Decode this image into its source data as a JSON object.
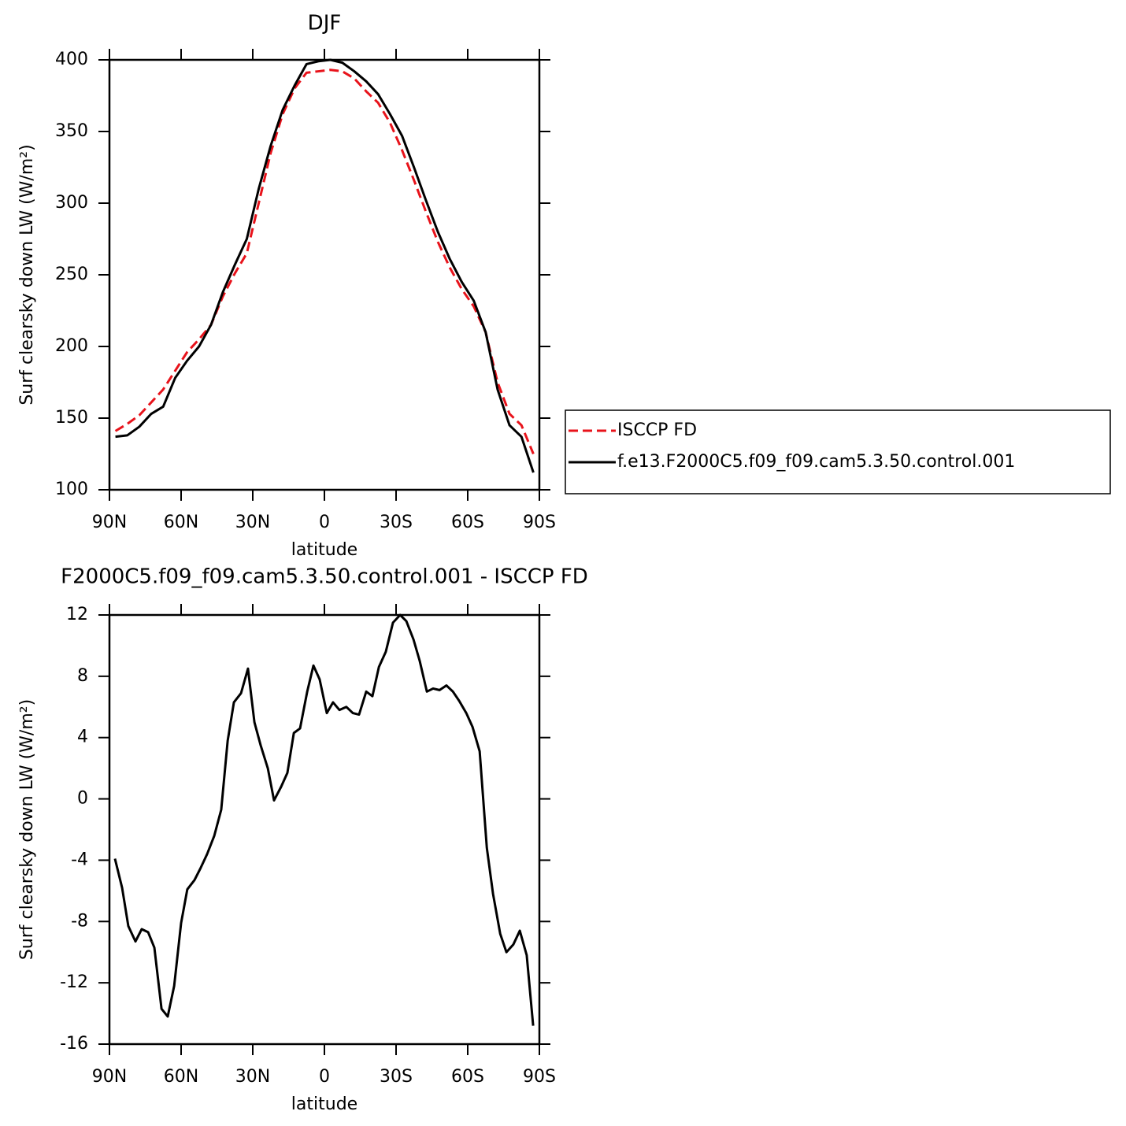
{
  "chart_data": [
    {
      "type": "line",
      "title": "DJF",
      "x_label": "latitude",
      "y_label": "Surf clearsky down LW (W/m²)",
      "xlim": [
        90,
        -90
      ],
      "xticks": [
        {
          "value": 90,
          "label": "90N"
        },
        {
          "value": 60,
          "label": "60N"
        },
        {
          "value": 30,
          "label": "30N"
        },
        0,
        {
          "value": -30,
          "label": "30S"
        },
        {
          "value": -60,
          "label": "60S"
        },
        {
          "value": -90,
          "label": "90S"
        }
      ],
      "ylim": [
        100,
        400
      ],
      "yticks": [
        100,
        150,
        200,
        250,
        300,
        350,
        400
      ],
      "legend": "right",
      "x": [
        87.5,
        82.5,
        77.5,
        72.5,
        67.5,
        62.5,
        57.5,
        52.5,
        47.5,
        42.5,
        37.5,
        32.5,
        27.5,
        22.5,
        17.5,
        12.5,
        7.5,
        2.5,
        -2.5,
        -7.5,
        -12.5,
        -17.5,
        -22.5,
        -27.5,
        -32.5,
        -37.5,
        -42.5,
        -47.5,
        -52.5,
        -57.5,
        -62.5,
        -67.5,
        -72.5,
        -77.5,
        -82.5,
        -87.5
      ],
      "series": [
        {
          "name": "ISCCP FD",
          "color": "#e8131b",
          "line_style": "dashed",
          "values": [
            141,
            146,
            152,
            161,
            170,
            183,
            196,
            205,
            215,
            235,
            251,
            265,
            300,
            335,
            362,
            380,
            391,
            392,
            393,
            392,
            387,
            378,
            370,
            356,
            337,
            316,
            294,
            273,
            255,
            240,
            228,
            210,
            175,
            153,
            145,
            125
          ]
        },
        {
          "name": "f.e13.F2000C5.f09_f09.cam5.3.50.control.001",
          "color": "#000000",
          "line_style": "solid",
          "values": [
            137,
            138,
            144,
            153,
            158,
            178,
            190,
            200,
            215,
            238,
            257,
            275,
            310,
            340,
            365,
            382,
            397,
            399,
            400,
            398,
            392,
            385,
            376,
            362,
            347,
            325,
            302,
            280,
            261,
            245,
            232,
            210,
            170,
            145,
            137,
            112
          ]
        }
      ]
    },
    {
      "type": "line",
      "title": "F2000C5.f09_f09.cam5.3.50.control.001 - ISCCP FD",
      "x_label": "latitude",
      "y_label": "Surf clearsky down LW (W/m²)",
      "xlim": [
        90,
        -90
      ],
      "xticks": [
        {
          "value": 90,
          "label": "90N"
        },
        {
          "value": 60,
          "label": "60N"
        },
        {
          "value": 30,
          "label": "30N"
        },
        0,
        {
          "value": -30,
          "label": "30S"
        },
        {
          "value": -60,
          "label": "60S"
        },
        {
          "value": -90,
          "label": "90S"
        }
      ],
      "ylim": [
        -16,
        12
      ],
      "yticks": [
        -16,
        -12,
        -8,
        -4,
        0,
        4,
        8,
        12
      ],
      "color": "#000000",
      "x": [
        87.7,
        84.7,
        82.1,
        79.1,
        76.5,
        73.8,
        71.2,
        68.2,
        65.6,
        62.9,
        60.0,
        57.4,
        54.4,
        51.8,
        49.1,
        46.1,
        43.2,
        40.5,
        37.9,
        34.9,
        32.0,
        29.3,
        26.7,
        23.7,
        21.1,
        18.1,
        15.5,
        12.8,
        10.2,
        7.2,
        4.6,
        2.0,
        -1.0,
        -3.6,
        -6.3,
        -9.2,
        -11.9,
        -14.5,
        -17.5,
        -20.1,
        -22.8,
        -25.7,
        -28.7,
        -31.7,
        -34.3,
        -37.3,
        -39.9,
        -42.9,
        -45.5,
        -48.2,
        -51.1,
        -53.8,
        -56.4,
        -59.4,
        -62.0,
        -65.0,
        -68.0,
        -70.6,
        -73.6,
        -76.2,
        -79.1,
        -81.8,
        -84.7,
        -87.4
      ],
      "values": [
        -3.9,
        -5.8,
        -8.3,
        -9.3,
        -8.5,
        -8.7,
        -9.7,
        -13.7,
        -14.2,
        -12.2,
        -8.1,
        -5.9,
        -5.3,
        -4.5,
        -3.6,
        -2.4,
        -0.7,
        3.8,
        6.3,
        6.9,
        8.5,
        5.0,
        3.5,
        2.0,
        -0.1,
        0.8,
        1.7,
        4.3,
        4.6,
        7.0,
        8.7,
        7.8,
        5.6,
        6.3,
        5.8,
        6.0,
        5.6,
        5.5,
        7.0,
        6.7,
        8.6,
        9.6,
        11.5,
        12.0,
        11.6,
        10.4,
        9.0,
        7.0,
        7.2,
        7.1,
        7.4,
        7.0,
        6.4,
        5.6,
        4.7,
        3.1,
        -3.2,
        -6.2,
        -8.8,
        -10.0,
        -9.5,
        -8.6,
        -10.2,
        -14.8
      ]
    }
  ]
}
